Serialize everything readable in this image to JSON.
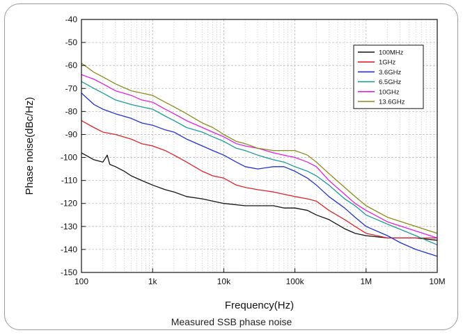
{
  "caption": "Measured SSB phase noise",
  "chart_data": {
    "type": "line",
    "xlabel": "Frequency(Hz)",
    "ylabel": "Phase noise(dBc/Hz)",
    "x_scale": "log",
    "xlim": [
      100,
      10000000
    ],
    "ylim": [
      -150,
      -40
    ],
    "x_ticks": [
      100,
      1000,
      10000,
      100000,
      1000000,
      10000000
    ],
    "x_tick_labels": [
      "100",
      "1k",
      "10k",
      "100k",
      "1M",
      "10M"
    ],
    "y_ticks": [
      -150,
      -140,
      -130,
      -120,
      -110,
      -100,
      -90,
      -80,
      -70,
      -60,
      -50,
      -40
    ],
    "y_tick_labels": [
      "-150",
      "-140",
      "-130",
      "-120",
      "-110",
      "-100",
      "-90",
      "-80",
      "-70",
      "-60",
      "-50",
      "-40"
    ],
    "grid": true,
    "legend_position": "top-right",
    "series": [
      {
        "name": "100MHz",
        "color": "#111111",
        "x": [
          100,
          150,
          200,
          230,
          250,
          300,
          400,
          500,
          700,
          1000,
          1500,
          2000,
          3000,
          5000,
          7000,
          10000,
          20000,
          30000,
          50000,
          70000,
          100000,
          150000,
          200000,
          300000,
          500000,
          700000,
          1000000,
          2000000,
          5000000,
          10000000
        ],
        "y": [
          -98,
          -101,
          -102,
          -99,
          -103,
          -104,
          -106,
          -108,
          -110,
          -112,
          -114,
          -115,
          -117,
          -118,
          -119,
          -120,
          -121,
          -121,
          -121,
          -122,
          -122,
          -123,
          -125,
          -127,
          -131,
          -133,
          -134,
          -135,
          -135,
          -136
        ]
      },
      {
        "name": "1GHz",
        "color": "#e0202a",
        "x": [
          100,
          150,
          200,
          300,
          500,
          700,
          1000,
          1500,
          2000,
          3000,
          5000,
          7000,
          10000,
          15000,
          20000,
          30000,
          50000,
          70000,
          100000,
          150000,
          200000,
          300000,
          500000,
          700000,
          1000000,
          2000000,
          5000000,
          10000000
        ],
        "y": [
          -84,
          -87,
          -89,
          -90,
          -92,
          -94,
          -95,
          -97,
          -99,
          -102,
          -106,
          -108,
          -109,
          -112,
          -113,
          -114,
          -115,
          -116,
          -117,
          -118,
          -119,
          -123,
          -127,
          -130,
          -133,
          -135,
          -135,
          -135
        ]
      },
      {
        "name": "3.6GHz",
        "color": "#2030d0",
        "x": [
          100,
          150,
          200,
          300,
          500,
          700,
          1000,
          1500,
          2000,
          3000,
          5000,
          7000,
          10000,
          15000,
          20000,
          30000,
          50000,
          70000,
          100000,
          150000,
          200000,
          300000,
          500000,
          700000,
          1000000,
          2000000,
          3000000,
          5000000,
          10000000
        ],
        "y": [
          -72,
          -77,
          -79,
          -81,
          -83,
          -85,
          -86,
          -88,
          -89,
          -92,
          -95,
          -97,
          -99,
          -102,
          -104,
          -105,
          -104,
          -104,
          -106,
          -109,
          -112,
          -117,
          -122,
          -126,
          -130,
          -134,
          -137,
          -140,
          -143
        ]
      },
      {
        "name": "6.5GHz",
        "color": "#1b9a96",
        "x": [
          100,
          150,
          200,
          300,
          500,
          700,
          1000,
          1500,
          2000,
          3000,
          5000,
          7000,
          10000,
          15000,
          20000,
          30000,
          50000,
          70000,
          100000,
          150000,
          200000,
          300000,
          500000,
          700000,
          1000000,
          2000000,
          5000000,
          10000000
        ],
        "y": [
          -67,
          -70,
          -72,
          -75,
          -77,
          -78,
          -79,
          -82,
          -84,
          -87,
          -89,
          -91,
          -93,
          -96,
          -97,
          -99,
          -101,
          -102,
          -104,
          -106,
          -108,
          -112,
          -118,
          -121,
          -125,
          -129,
          -134,
          -138
        ]
      },
      {
        "name": "10GHz",
        "color": "#e020e0",
        "x": [
          100,
          150,
          200,
          300,
          500,
          700,
          1000,
          1500,
          2000,
          3000,
          5000,
          7000,
          10000,
          15000,
          20000,
          30000,
          50000,
          70000,
          100000,
          150000,
          200000,
          300000,
          500000,
          700000,
          1000000,
          2000000,
          5000000,
          10000000
        ],
        "y": [
          -64,
          -66,
          -68,
          -71,
          -73,
          -75,
          -76,
          -79,
          -81,
          -84,
          -87,
          -89,
          -91,
          -94,
          -95,
          -96,
          -98,
          -99,
          -100,
          -102,
          -104,
          -110,
          -116,
          -120,
          -123,
          -128,
          -132,
          -135
        ]
      },
      {
        "name": "13.6GHz",
        "color": "#8a8a1a",
        "x": [
          100,
          150,
          200,
          300,
          500,
          700,
          1000,
          1500,
          2000,
          3000,
          5000,
          7000,
          10000,
          15000,
          20000,
          30000,
          50000,
          70000,
          100000,
          150000,
          200000,
          300000,
          500000,
          700000,
          1000000,
          2000000,
          5000000,
          10000000
        ],
        "y": [
          -59,
          -63,
          -65,
          -68,
          -71,
          -72,
          -73,
          -76,
          -78,
          -81,
          -85,
          -87,
          -90,
          -93,
          -94,
          -96,
          -97,
          -97,
          -97,
          -99,
          -102,
          -107,
          -113,
          -117,
          -121,
          -126,
          -130,
          -133
        ]
      }
    ]
  }
}
